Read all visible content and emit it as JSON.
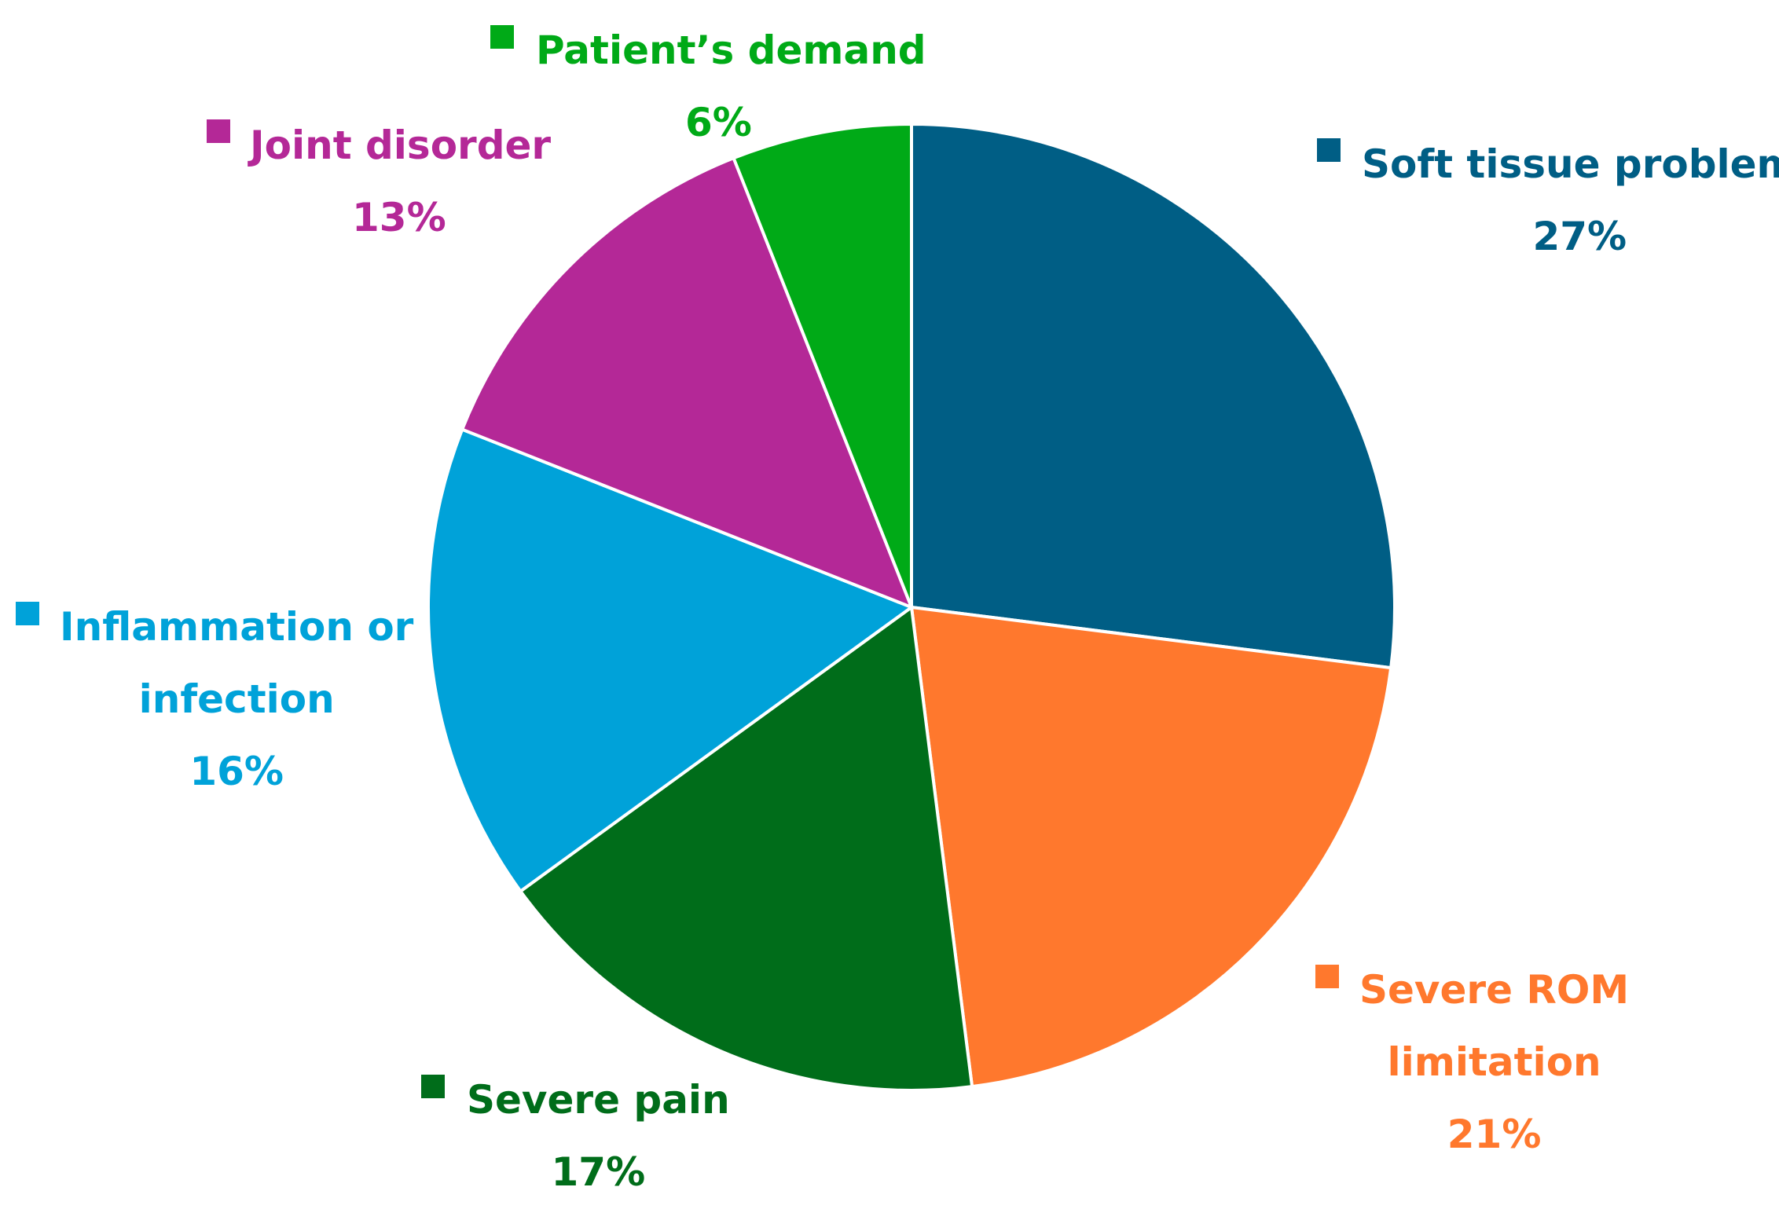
{
  "chart_data": {
    "type": "pie",
    "title": "",
    "slices": [
      {
        "name": "Soft tissue problem",
        "value": 27,
        "label": "27%",
        "color": "#005E85"
      },
      {
        "name": "Severe ROM limitation",
        "value": 21,
        "label": "21%",
        "color": "#FF782D"
      },
      {
        "name": "Severe pain",
        "value": 17,
        "label": "17%",
        "color": "#006D1A"
      },
      {
        "name": "Inflammation or infection",
        "value": 16,
        "label": "16%",
        "color": "#00A2D9"
      },
      {
        "name": "Joint disorder",
        "value": 13,
        "label": "13%",
        "color": "#B42897"
      },
      {
        "name": "Patient’s demand",
        "value": 6,
        "label": "6%",
        "color": "#00AA17"
      }
    ],
    "label_lines": {
      "soft_tissue": [
        "Soft tissue problem"
      ],
      "rom": [
        "Severe ROM",
        "limitation"
      ],
      "pain": [
        "Severe pain"
      ],
      "inflammation": [
        "Inflammation or",
        "infection"
      ],
      "joint": [
        "Joint disorder"
      ],
      "demand": [
        "Patient’s demand"
      ]
    },
    "start_angle": "12 o'clock",
    "direction": "clockwise",
    "legend": "labels beside slices"
  }
}
